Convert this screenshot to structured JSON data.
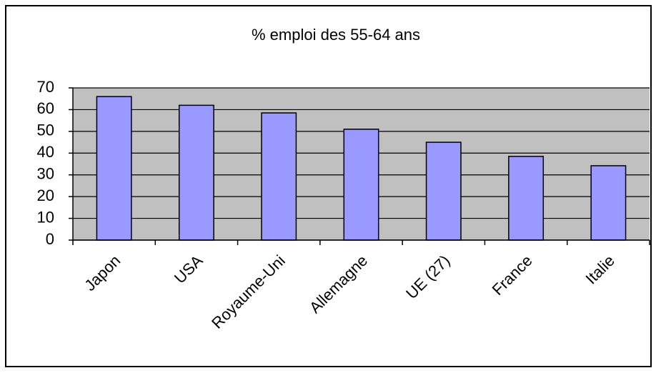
{
  "chart_data": {
    "type": "bar",
    "title": "% emploi des 55-64 ans",
    "categories": [
      "Japon",
      "USA",
      "Royaume-Uni",
      "Allemagne",
      "UE (27)",
      "France",
      "Italie"
    ],
    "values": [
      66,
      62,
      58.5,
      51,
      45,
      38.5,
      34.2
    ],
    "color": "#9999ff",
    "plot_background": "#c0c0c0",
    "ylim": [
      0,
      70
    ],
    "yticks": [
      0,
      10,
      20,
      30,
      40,
      50,
      60,
      70
    ],
    "grid": true
  }
}
